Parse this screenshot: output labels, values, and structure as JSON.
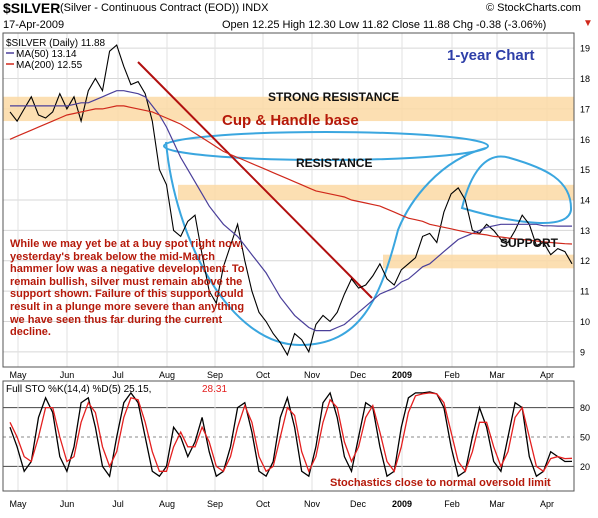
{
  "header": {
    "symbol": "$SILVER",
    "contract": "(Silver - Continuous Contract (EOD)) INDX",
    "brand": "© StockCharts.com",
    "date": "17-Apr-2009",
    "ohlc": "Open 12.25  High 12.30  Low 11.82  Close 11.88  Chg -0.38 (-3.06%)",
    "change_arrow": "▼"
  },
  "legend": {
    "price": "$SILVER (Daily) 11.88",
    "ma50": "MA(50) 13.14",
    "ma200": "MA(200) 12.55",
    "stoch_prefix": "Full STO %K(14,4) %D(5) 25.15,",
    "stoch_d": "28.31"
  },
  "annotations": {
    "one_year": "1-year Chart",
    "strong_resistance": "STRONG RESISTANCE",
    "cup_handle": "Cup & Handle base",
    "resistance": "RESISTANCE",
    "support": "SUPPORT",
    "stoch_note": "Stochastics close to normal oversold limit",
    "commentary": "While we may yet be at a buy spot right now, yesterday's break below the mid-March hammer low was a negative development. To remain bullish, silver must remain above the support shown. Failure of this support could result in a plunge more severe than anything we have seen thus far during the current decline."
  },
  "colors": {
    "price": "#000000",
    "ma50": "#4a3f9a",
    "ma200": "#d0281b",
    "band": "#fbd9a4",
    "cup": "#3aa6df",
    "trendline": "#b10f0f",
    "annotation_red": "#b5190a",
    "title_blue": "#2e3fa8",
    "stoch_k": "#000000",
    "stoch_d": "#e41f1f"
  },
  "chart_data": [
    {
      "type": "line",
      "panel": "price",
      "ylim": [
        8.5,
        19.5
      ],
      "y_ticks": [
        9,
        10,
        11,
        12,
        13,
        14,
        15,
        16,
        17,
        18,
        19
      ],
      "x_labels": [
        "May",
        "Jun",
        "Jul",
        "Aug",
        "Sep",
        "Oct",
        "Nov",
        "Dec",
        "2009",
        "Feb",
        "Mar",
        "Apr"
      ],
      "grid": true,
      "legend": "top-left",
      "series": [
        {
          "name": "$SILVER (Daily) 11.88",
          "values": [
            16.9,
            16.6,
            17.0,
            17.4,
            16.8,
            16.7,
            16.9,
            17.5,
            17.0,
            17.4,
            16.6,
            17.6,
            18.0,
            17.6,
            18.9,
            19.1,
            18.4,
            17.8,
            17.9,
            17.5,
            16.6,
            15.0,
            14.5,
            13.0,
            12.8,
            13.3,
            13.5,
            12.2,
            11.0,
            10.6,
            11.8,
            12.5,
            13.2,
            12.0,
            11.0,
            10.3,
            10.0,
            9.6,
            9.3,
            8.9,
            9.6,
            9.4,
            9.0,
            9.9,
            10.2,
            10.0,
            10.3,
            10.9,
            11.4,
            11.1,
            11.2,
            11.5,
            11.9,
            11.4,
            11.2,
            11.7,
            11.9,
            12.1,
            12.8,
            12.9,
            12.6,
            13.6,
            14.2,
            14.4,
            14.0,
            13.0,
            12.9,
            13.2,
            13.0,
            12.7,
            12.6,
            13.0,
            13.5,
            13.2,
            12.5,
            12.6,
            12.2,
            12.4,
            12.3,
            11.9
          ]
        },
        {
          "name": "MA(50) 13.14",
          "values": [
            17.1,
            17.1,
            17.1,
            17.1,
            17.1,
            17.1,
            17.1,
            17.1,
            17.1,
            17.15,
            17.2,
            17.2,
            17.3,
            17.4,
            17.5,
            17.6,
            17.6,
            17.55,
            17.5,
            17.4,
            17.1,
            16.8,
            16.4,
            15.9,
            15.4,
            15.0,
            14.6,
            14.2,
            13.8,
            13.5,
            13.2,
            13.0,
            12.8,
            12.5,
            12.2,
            11.9,
            11.6,
            11.2,
            10.8,
            10.5,
            10.2,
            10.0,
            9.8,
            9.7,
            9.7,
            9.7,
            9.8,
            9.9,
            10.1,
            10.3,
            10.5,
            10.7,
            10.9,
            11.0,
            11.1,
            11.3,
            11.4,
            11.6,
            11.8,
            11.9,
            12.1,
            12.3,
            12.5,
            12.7,
            12.8,
            12.9,
            13.0,
            13.1,
            13.15,
            13.2,
            13.2,
            13.2,
            13.2,
            13.2,
            13.2,
            13.15,
            13.15,
            13.14,
            13.14,
            13.14
          ]
        },
        {
          "name": "MA(200) 12.55",
          "values": [
            16.0,
            16.1,
            16.2,
            16.3,
            16.4,
            16.5,
            16.6,
            16.7,
            16.8,
            16.85,
            16.9,
            16.95,
            17.0,
            17.0,
            17.05,
            17.1,
            17.1,
            17.05,
            17.0,
            16.95,
            16.9,
            16.8,
            16.7,
            16.6,
            16.5,
            16.35,
            16.2,
            16.05,
            15.9,
            15.75,
            15.6,
            15.5,
            15.4,
            15.3,
            15.2,
            15.1,
            15.0,
            14.9,
            14.8,
            14.7,
            14.6,
            14.5,
            14.4,
            14.3,
            14.25,
            14.2,
            14.15,
            14.1,
            14.0,
            13.95,
            13.9,
            13.85,
            13.8,
            13.7,
            13.6,
            13.5,
            13.4,
            13.35,
            13.3,
            13.2,
            13.15,
            13.1,
            13.05,
            13.0,
            12.95,
            12.9,
            12.88,
            12.85,
            12.8,
            12.78,
            12.75,
            12.72,
            12.7,
            12.68,
            12.65,
            12.62,
            12.6,
            12.58,
            12.56,
            12.55
          ]
        }
      ]
    },
    {
      "type": "line",
      "panel": "stochastics",
      "ylim": [
        0,
        100
      ],
      "y_ticks": [
        20,
        50,
        80
      ],
      "x_labels": [
        "May",
        "Jun",
        "Jul",
        "Aug",
        "Sep",
        "Oct",
        "Nov",
        "Dec",
        "2009",
        "Feb",
        "Mar",
        "Apr"
      ],
      "series": [
        {
          "name": "%K(14,4)",
          "values": [
            60,
            40,
            15,
            25,
            70,
            90,
            75,
            30,
            15,
            40,
            85,
            90,
            60,
            20,
            10,
            50,
            85,
            95,
            85,
            50,
            15,
            10,
            20,
            60,
            50,
            30,
            45,
            70,
            35,
            10,
            15,
            40,
            80,
            85,
            55,
            15,
            10,
            25,
            70,
            90,
            60,
            15,
            10,
            40,
            85,
            95,
            70,
            30,
            15,
            50,
            85,
            80,
            40,
            10,
            15,
            60,
            90,
            95,
            95,
            96,
            94,
            80,
            40,
            10,
            15,
            50,
            80,
            60,
            25,
            15,
            50,
            85,
            80,
            30,
            10,
            15,
            35,
            30,
            25,
            25.15
          ]
        },
        {
          "name": "%D(5)",
          "values": [
            65,
            50,
            30,
            25,
            50,
            80,
            80,
            50,
            25,
            30,
            65,
            85,
            75,
            40,
            20,
            35,
            70,
            90,
            88,
            65,
            35,
            15,
            15,
            40,
            55,
            40,
            40,
            60,
            45,
            20,
            15,
            30,
            60,
            82,
            65,
            30,
            15,
            20,
            50,
            80,
            72,
            35,
            15,
            30,
            65,
            88,
            80,
            45,
            25,
            40,
            70,
            82,
            55,
            25,
            15,
            40,
            75,
            92,
            94,
            95,
            94,
            85,
            55,
            25,
            15,
            35,
            65,
            65,
            40,
            20,
            35,
            70,
            80,
            50,
            20,
            15,
            28,
            30,
            28,
            28.31
          ]
        }
      ]
    }
  ]
}
